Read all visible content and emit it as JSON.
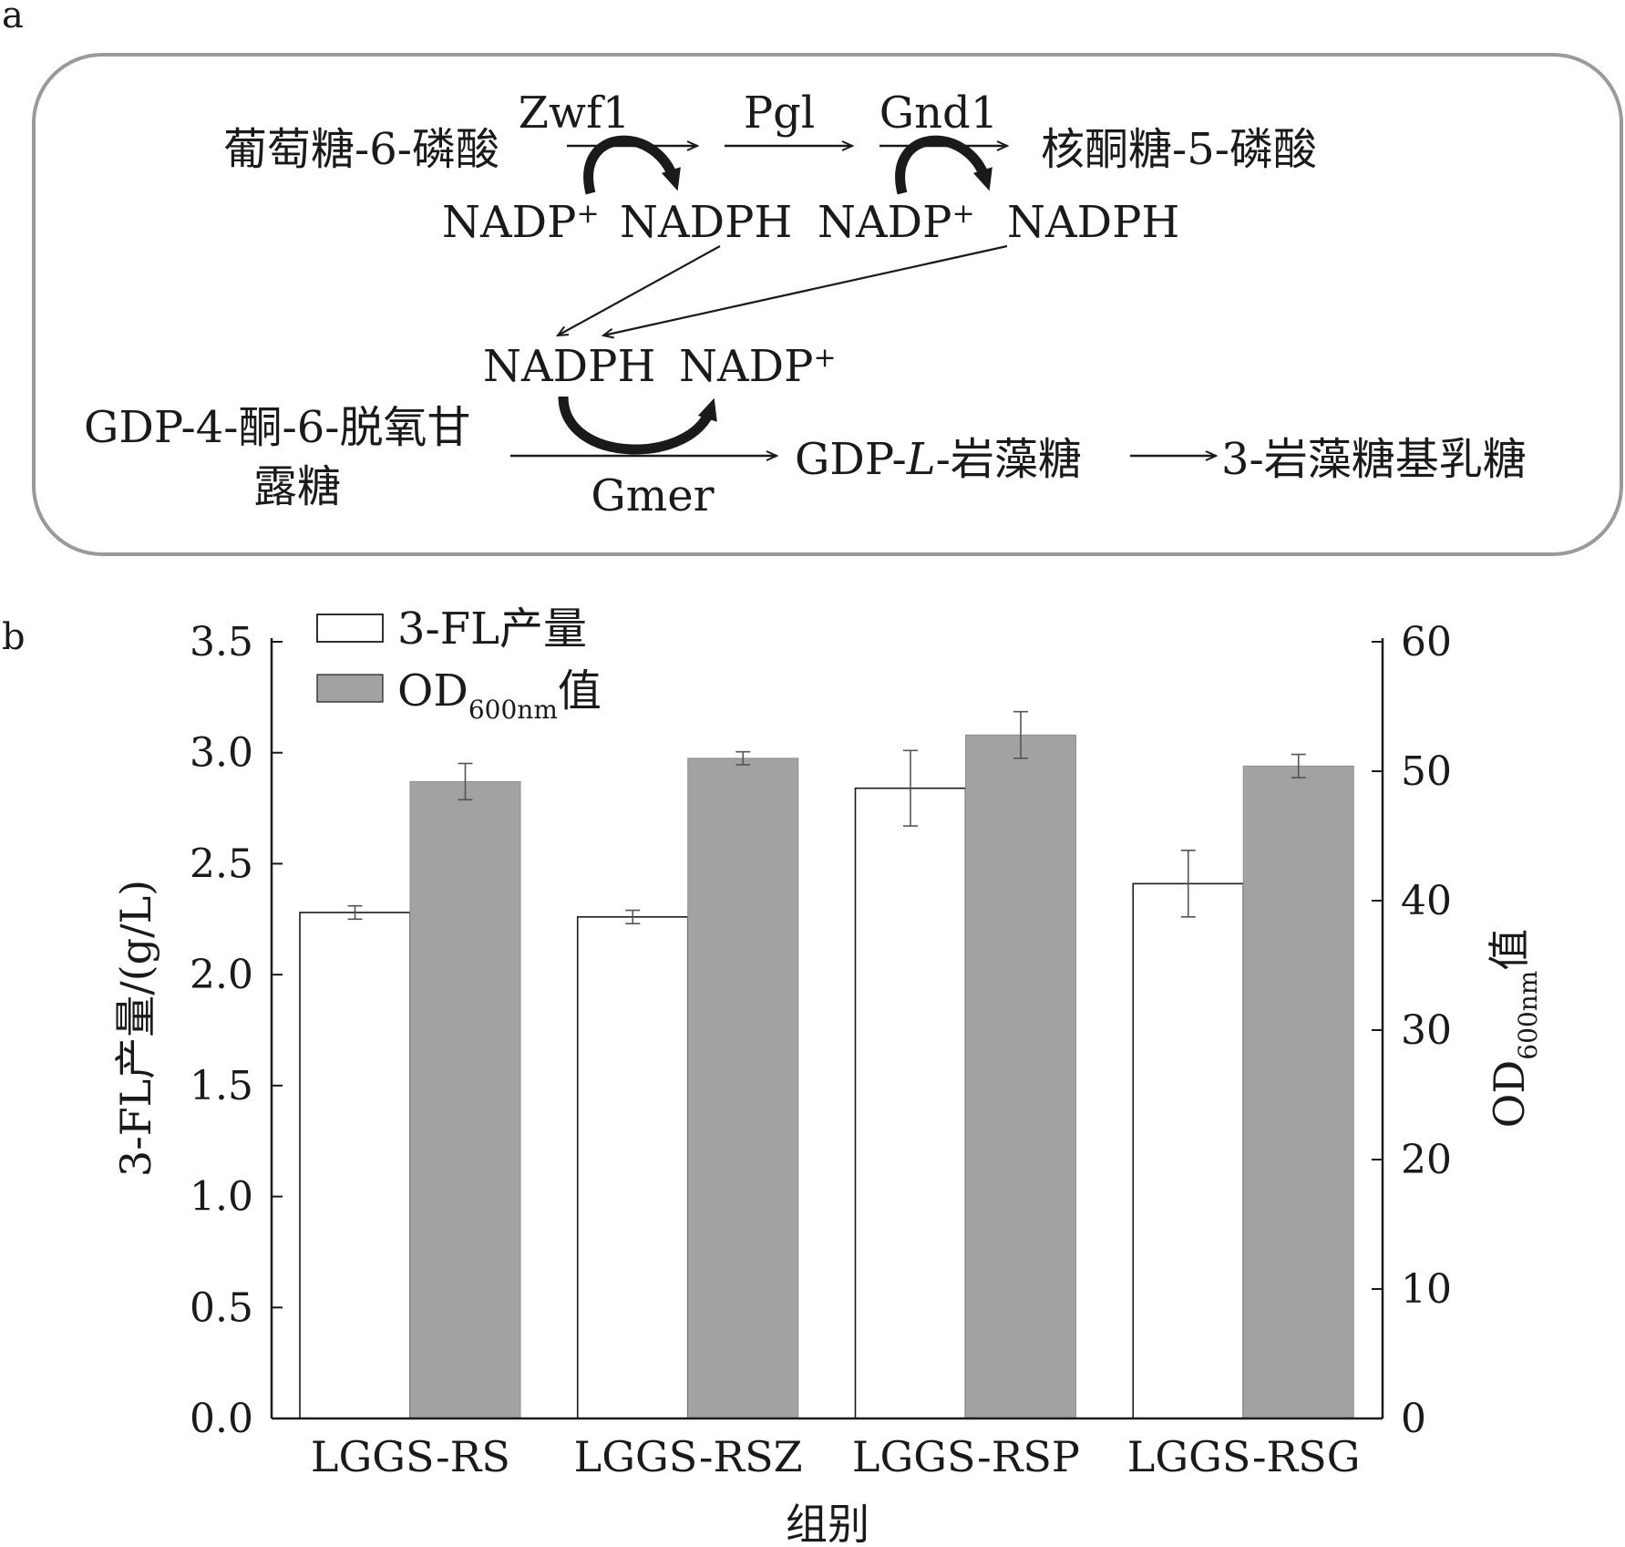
{
  "panel_a": {
    "label": "a",
    "compounds": {
      "g6p": "葡萄糖-6-磷酸",
      "ru5p": "核酮糖-5-磷酸",
      "gdp_keto_1": "GDP-4-酮-6-脱氧甘",
      "gdp_keto_2": "露糖",
      "gdp_fucose_prefix": "GDP-",
      "gdp_fucose_italic": "L",
      "gdp_fucose_suffix": "-岩藻糖",
      "product": "3-岩藻糖基乳糖"
    },
    "enzymes": [
      "Zwf1",
      "Pgl",
      "Gnd1",
      "Gmer"
    ],
    "cofactors": {
      "nadp": "NADP",
      "nadph": "NADPH",
      "plus": "+"
    }
  },
  "panel_b": {
    "label": "b"
  },
  "chart_data": {
    "type": "bar",
    "categories": [
      "LGGS-RS",
      "LGGS-RSZ",
      "LGGS-RSP",
      "LGGS-RSG"
    ],
    "xlabel": "组别",
    "ylabel": "3-FL产量/(g/L)",
    "y2label_main": "OD",
    "y2label_sub": "600nm",
    "y2label_suffix": "值",
    "ylim": [
      0,
      3.5
    ],
    "y2lim": [
      0,
      60
    ],
    "yticks": [
      "0.0",
      "0.5",
      "1.0",
      "1.5",
      "2.0",
      "2.5",
      "3.0",
      "3.5"
    ],
    "y2ticks": [
      "0",
      "10",
      "20",
      "30",
      "40",
      "50",
      "60"
    ],
    "grid": false,
    "legend_position": "top-left",
    "series": [
      {
        "name": "3-FL产量",
        "axis": "left",
        "color": "#ffffff",
        "values": [
          2.28,
          2.26,
          2.84,
          2.41
        ],
        "errors": [
          0.03,
          0.03,
          0.17,
          0.15
        ]
      },
      {
        "name_main": "OD",
        "name_sub": "600nm",
        "name_suffix": "值",
        "axis": "right",
        "color": "#a2a2a2",
        "values": [
          49.2,
          51.0,
          52.8,
          50.4
        ],
        "errors": [
          1.4,
          0.5,
          1.8,
          0.9
        ]
      }
    ]
  }
}
